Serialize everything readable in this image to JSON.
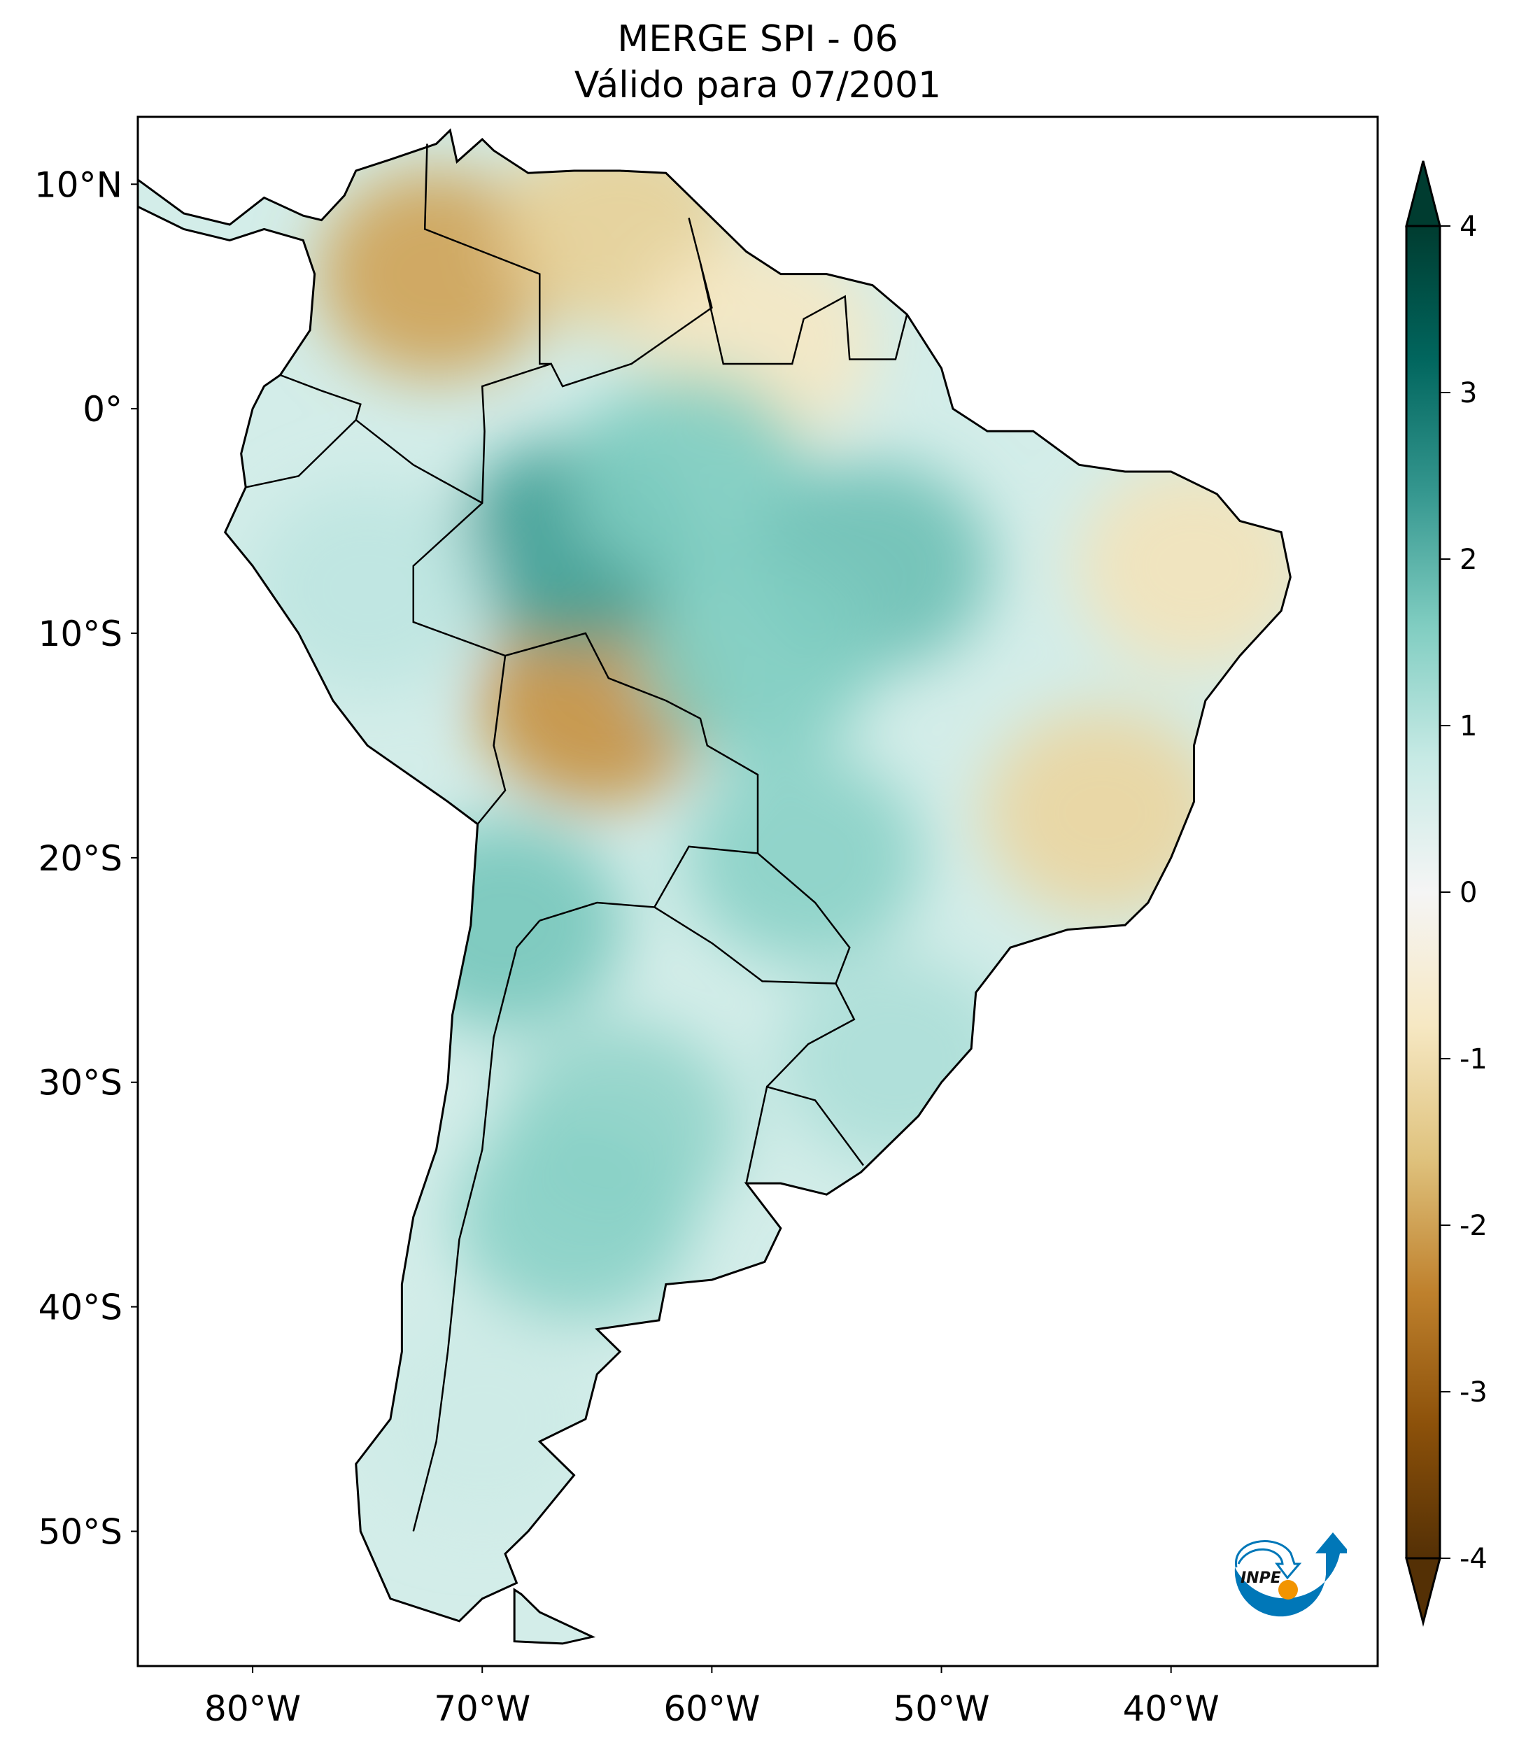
{
  "chart_data": {
    "type": "heatmap",
    "title": "MERGE   SPI - 06",
    "subtitle": "Válido para 07/2001",
    "projection": "PlateCarree",
    "lon_range": [
      -85,
      -31
    ],
    "lat_range": [
      -56,
      13
    ],
    "x_ticks": [
      {
        "value": -80,
        "label": "80°W"
      },
      {
        "value": -70,
        "label": "70°W"
      },
      {
        "value": -60,
        "label": "60°W"
      },
      {
        "value": -50,
        "label": "50°W"
      },
      {
        "value": -40,
        "label": "40°W"
      }
    ],
    "y_ticks": [
      {
        "value": 10,
        "label": "10°N"
      },
      {
        "value": 0,
        "label": "0°"
      },
      {
        "value": -10,
        "label": "10°S"
      },
      {
        "value": -20,
        "label": "20°S"
      },
      {
        "value": -30,
        "label": "30°S"
      },
      {
        "value": -40,
        "label": "40°S"
      },
      {
        "value": -50,
        "label": "50°S"
      }
    ],
    "colorbar": {
      "colormap": "BrBG",
      "range": [
        -4,
        4
      ],
      "extend": "both",
      "ticks": [
        {
          "value": 4,
          "label": "4"
        },
        {
          "value": 3,
          "label": "3"
        },
        {
          "value": 2,
          "label": "2"
        },
        {
          "value": 1,
          "label": "1"
        },
        {
          "value": 0,
          "label": "0"
        },
        {
          "value": -1,
          "label": "-1"
        },
        {
          "value": -2,
          "label": "-2"
        },
        {
          "value": -3,
          "label": "-3"
        },
        {
          "value": -4,
          "label": "-4"
        }
      ],
      "colors": [
        "#543005",
        "#8c510a",
        "#bf812d",
        "#dfc27d",
        "#f6e8c3",
        "#f5f5f5",
        "#c7eae5",
        "#80cdc1",
        "#35978f",
        "#01665e",
        "#003c30"
      ]
    },
    "regions": [
      {
        "lon": -72,
        "lat": 6,
        "spi": -2.0
      },
      {
        "lon": -64,
        "lat": 8,
        "spi": -1.3
      },
      {
        "lon": -58,
        "lat": 3,
        "spi": -0.8
      },
      {
        "lon": -65,
        "lat": -13,
        "spi": -2.2
      },
      {
        "lon": -43,
        "lat": -18,
        "spi": -1.2
      },
      {
        "lon": -39,
        "lat": -7,
        "spi": -0.9
      },
      {
        "lon": -66,
        "lat": -6,
        "spi": 2.3
      },
      {
        "lon": -61,
        "lat": -3,
        "spi": 1.6
      },
      {
        "lon": -53,
        "lat": -7,
        "spi": 1.8
      },
      {
        "lon": -58,
        "lat": -11,
        "spi": 1.6
      },
      {
        "lon": -75,
        "lat": -8,
        "spi": 0.9
      },
      {
        "lon": -56,
        "lat": -20,
        "spi": 1.5
      },
      {
        "lon": -69,
        "lat": -23,
        "spi": 1.7
      },
      {
        "lon": -64,
        "lat": -32,
        "spi": 1.4
      },
      {
        "lon": -66,
        "lat": -36,
        "spi": 1.5
      },
      {
        "lon": -52,
        "lat": -29,
        "spi": 1.1
      },
      {
        "lon": -70,
        "lat": -45,
        "spi": 0.7
      }
    ]
  },
  "logo": {
    "text": "INPE",
    "colors": {
      "blue": "#0077b8",
      "orange": "#f29400"
    }
  }
}
